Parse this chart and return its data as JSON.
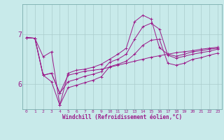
{
  "background_color": "#c8eaea",
  "line_color": "#9b1a8a",
  "grid_color": "#aacccc",
  "xlabel": "Windchill (Refroidissement éolien,°C)",
  "x_ticks": [
    0,
    1,
    2,
    3,
    4,
    5,
    6,
    7,
    8,
    9,
    10,
    11,
    12,
    13,
    14,
    15,
    16,
    17,
    18,
    19,
    20,
    21,
    22,
    23
  ],
  "ylim": [
    5.5,
    7.6
  ],
  "yticks": [
    6,
    7
  ],
  "series": [
    [
      6.93,
      6.92,
      6.18,
      6.22,
      5.82,
      6.18,
      6.22,
      6.26,
      6.28,
      6.3,
      6.34,
      6.38,
      6.42,
      6.46,
      6.5,
      6.54,
      6.57,
      6.6,
      6.63,
      6.65,
      6.67,
      6.7,
      6.72,
      6.74
    ],
    [
      6.93,
      6.92,
      6.18,
      6.22,
      5.82,
      6.05,
      6.1,
      6.16,
      6.2,
      6.25,
      6.44,
      6.5,
      6.6,
      6.9,
      7.15,
      7.22,
      7.1,
      6.58,
      6.52,
      6.56,
      6.6,
      6.63,
      6.66,
      6.7
    ],
    [
      6.93,
      6.92,
      6.55,
      6.65,
      5.58,
      6.22,
      6.28,
      6.3,
      6.34,
      6.4,
      6.5,
      6.6,
      6.72,
      7.25,
      7.38,
      7.3,
      6.73,
      6.6,
      6.56,
      6.6,
      6.65,
      6.67,
      6.7,
      6.72
    ],
    [
      6.93,
      6.92,
      6.18,
      6.05,
      5.58,
      5.93,
      5.98,
      6.03,
      6.08,
      6.15,
      6.35,
      6.4,
      6.46,
      6.6,
      6.78,
      6.88,
      6.9,
      6.42,
      6.38,
      6.42,
      6.5,
      6.53,
      6.58,
      6.62
    ]
  ]
}
